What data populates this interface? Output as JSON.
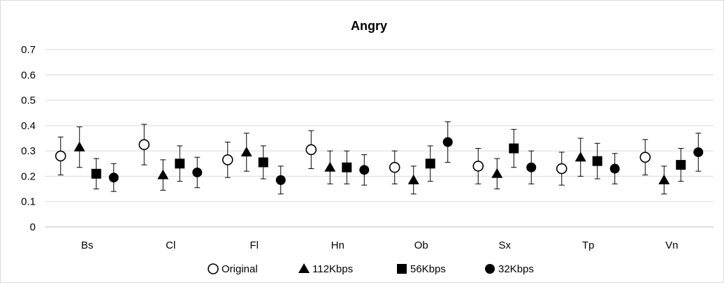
{
  "chart_data": {
    "type": "scatter",
    "title": "Angry",
    "xlabel": "",
    "ylabel": "",
    "ylim": [
      0,
      0.7
    ],
    "yticks": [
      "0",
      "0.1",
      "0.2",
      "0.3",
      "0.4",
      "0.5",
      "0.6",
      "0.7"
    ],
    "categories": [
      "Bs",
      "Cl",
      "Fl",
      "Hn",
      "Ob",
      "Sx",
      "Tp",
      "Vn"
    ],
    "grid": true,
    "legend_position": "bottom",
    "series": [
      {
        "name": "Original",
        "marker": "open-circle",
        "values": [
          0.28,
          0.325,
          0.265,
          0.305,
          0.235,
          0.24,
          0.23,
          0.275
        ],
        "error": [
          0.075,
          0.08,
          0.07,
          0.075,
          0.065,
          0.07,
          0.065,
          0.07
        ]
      },
      {
        "name": "112Kbps",
        "marker": "triangle",
        "values": [
          0.315,
          0.205,
          0.295,
          0.235,
          0.185,
          0.21,
          0.275,
          0.185
        ],
        "error": [
          0.08,
          0.06,
          0.075,
          0.065,
          0.055,
          0.06,
          0.075,
          0.055
        ]
      },
      {
        "name": "56Kbps",
        "marker": "square",
        "values": [
          0.21,
          0.25,
          0.255,
          0.235,
          0.25,
          0.31,
          0.26,
          0.245
        ],
        "error": [
          0.06,
          0.07,
          0.065,
          0.065,
          0.07,
          0.075,
          0.07,
          0.065
        ]
      },
      {
        "name": "32Kbps",
        "marker": "filled-circle",
        "values": [
          0.195,
          0.215,
          0.185,
          0.225,
          0.335,
          0.235,
          0.23,
          0.295
        ],
        "error": [
          0.055,
          0.06,
          0.055,
          0.06,
          0.08,
          0.065,
          0.06,
          0.075
        ]
      }
    ]
  }
}
